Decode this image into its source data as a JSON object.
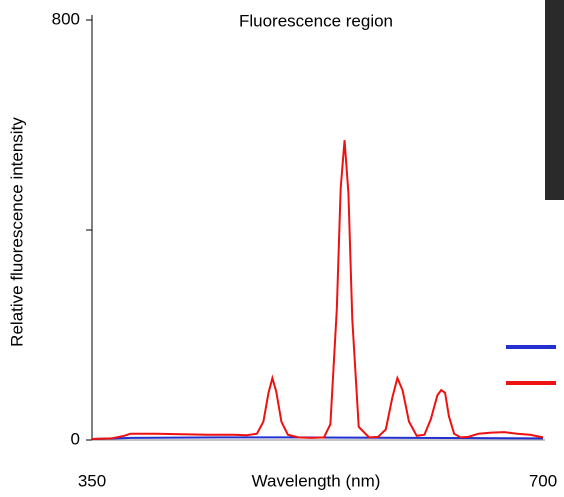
{
  "chart_data": {
    "type": "line",
    "title": "Fluorescence region",
    "x_label": "Wavelength (nm)",
    "y_label": "Relative fluorescence intensity",
    "xlim": [
      350,
      700
    ],
    "xticks": [
      350,
      700
    ],
    "ylim": [
      0,
      800
    ],
    "yticks": [
      0,
      800
    ],
    "minor_yticks": [
      400
    ],
    "series": [
      {
        "color": "#2330d0",
        "x": [
          350,
          380,
          450,
          500,
          600,
          700
        ],
        "values": [
          2,
          4,
          5,
          5,
          4,
          3
        ]
      },
      {
        "color": "#ee1111",
        "x": [
          350,
          365,
          375,
          380,
          400,
          420,
          440,
          460,
          470,
          478,
          483,
          487,
          490,
          493,
          497,
          502,
          510,
          520,
          530,
          535,
          540,
          543,
          546,
          549,
          552,
          557,
          565,
          572,
          578,
          583,
          587,
          591,
          596,
          602,
          608,
          613,
          618,
          621,
          624,
          627,
          631,
          636,
          642,
          650,
          660,
          670,
          680,
          690,
          700
        ],
        "values": [
          2,
          3,
          8,
          12,
          12,
          11,
          10,
          10,
          9,
          12,
          35,
          90,
          118,
          92,
          35,
          10,
          5,
          4,
          5,
          30,
          250,
          480,
          571,
          470,
          230,
          25,
          5,
          6,
          20,
          80,
          118,
          95,
          35,
          8,
          10,
          40,
          85,
          95,
          90,
          45,
          12,
          5,
          6,
          12,
          14,
          15,
          12,
          10,
          5
        ]
      }
    ]
  }
}
